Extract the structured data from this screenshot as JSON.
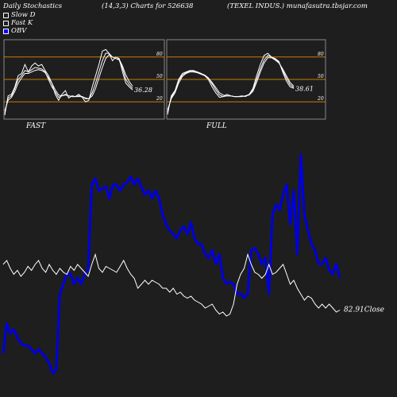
{
  "header": {
    "left": "Daily Stochastics",
    "center": "(14,3,3) Charts for 526638",
    "right": "(TEXEL INDUS.) munafasutra.tbsjar.com"
  },
  "legend": [
    {
      "label": "Slow  D",
      "color": "#1e1e1e"
    },
    {
      "label": "Fast K",
      "color": "#1e1e1e"
    },
    {
      "label": "OBV",
      "color": "#0000ff"
    }
  ],
  "colors": {
    "background": "#1e1e1e",
    "stoch_line": "#ffffff",
    "band_line": "#cc7a00",
    "obv_line": "#0000dd",
    "close_line": "#ffffff"
  },
  "chart_data": [
    {
      "type": "line",
      "title": "FAST",
      "ylim": [
        0,
        100
      ],
      "yticks": [
        20,
        50,
        80
      ],
      "bands": [
        20,
        50,
        80
      ],
      "last_label": "36.28",
      "series": [
        {
          "values": [
            2,
            28,
            30,
            40,
            55,
            58,
            70,
            60,
            68,
            72,
            68,
            70,
            62,
            55,
            45,
            30,
            22,
            30,
            35,
            25,
            28,
            27,
            30,
            26,
            20,
            22,
            40,
            55,
            70,
            88,
            90,
            85,
            75,
            80,
            78,
            60,
            45,
            40,
            36
          ]
        },
        {
          "values": [
            5,
            25,
            28,
            38,
            50,
            55,
            62,
            60,
            63,
            66,
            65,
            64,
            60,
            50,
            40,
            33,
            26,
            28,
            30,
            28,
            27,
            27,
            28,
            27,
            24,
            24,
            32,
            45,
            60,
            75,
            85,
            85,
            80,
            78,
            76,
            65,
            50,
            43,
            38
          ]
        },
        {
          "values": [
            8,
            22,
            26,
            34,
            45,
            52,
            58,
            58,
            60,
            62,
            63,
            62,
            59,
            52,
            45,
            36,
            29,
            28,
            29,
            28,
            27,
            27,
            27,
            27,
            25,
            24,
            28,
            38,
            52,
            66,
            78,
            83,
            80,
            78,
            77,
            68,
            56,
            47,
            41
          ]
        }
      ]
    },
    {
      "type": "line",
      "title": "FULL",
      "ylim": [
        0,
        100
      ],
      "yticks": [
        20,
        50,
        80
      ],
      "bands": [
        20,
        50,
        80
      ],
      "last_label": "38.61",
      "series": [
        {
          "values": [
            3,
            28,
            35,
            50,
            58,
            60,
            62,
            62,
            60,
            58,
            55,
            50,
            40,
            32,
            26,
            27,
            30,
            28,
            27,
            27,
            28,
            27,
            30,
            38,
            55,
            70,
            82,
            85,
            80,
            78,
            74,
            60,
            48,
            40,
            38
          ]
        },
        {
          "values": [
            6,
            26,
            34,
            48,
            56,
            59,
            61,
            61,
            60,
            58,
            56,
            52,
            44,
            36,
            29,
            27,
            28,
            28,
            27,
            27,
            27,
            28,
            30,
            36,
            50,
            64,
            76,
            82,
            80,
            77,
            73,
            62,
            52,
            43,
            39
          ]
        },
        {
          "values": [
            9,
            24,
            32,
            45,
            54,
            58,
            60,
            60,
            59,
            57,
            55,
            52,
            46,
            39,
            32,
            29,
            28,
            28,
            27,
            27,
            27,
            28,
            29,
            34,
            46,
            60,
            72,
            79,
            79,
            76,
            72,
            64,
            55,
            46,
            41
          ]
        }
      ]
    },
    {
      "type": "line",
      "close_label": "82.91Close",
      "series": [
        {
          "name": "OBV",
          "values": [
            10,
            25,
            20,
            22,
            18,
            15,
            14,
            14,
            12,
            10,
            12,
            10,
            8,
            5,
            0,
            2,
            40,
            45,
            50,
            50,
            45,
            48,
            45,
            50,
            52,
            95,
            98,
            92,
            93,
            94,
            88,
            95,
            95,
            92,
            95,
            96,
            99,
            95,
            98,
            94,
            90,
            92,
            88,
            92,
            88,
            80,
            75,
            72,
            70,
            68,
            72,
            74,
            70,
            76,
            68,
            65,
            65,
            60,
            58,
            62,
            55,
            60,
            48,
            45,
            46,
            45,
            40,
            40,
            38,
            40,
            62,
            63,
            60,
            55,
            58,
            40,
            80,
            85,
            82,
            90,
            95,
            75,
            92,
            60,
            110,
            80,
            72,
            65,
            62,
            55,
            55,
            58,
            52,
            50,
            55,
            48
          ]
        },
        {
          "name": "Close",
          "values": [
            50,
            52,
            48,
            45,
            47,
            44,
            46,
            49,
            47,
            50,
            52,
            48,
            46,
            50,
            47,
            45,
            48,
            46,
            45,
            49,
            47,
            50,
            48,
            46,
            44,
            50,
            55,
            48,
            46,
            49,
            48,
            47,
            46,
            49,
            52,
            48,
            45,
            43,
            38,
            40,
            42,
            40,
            42,
            41,
            40,
            38,
            38,
            36,
            38,
            35,
            36,
            34,
            33,
            34,
            32,
            31,
            30,
            28,
            29,
            30,
            27,
            25,
            26,
            24,
            25,
            30,
            40,
            45,
            48,
            55,
            50,
            46,
            45,
            43,
            45,
            50,
            45,
            46,
            48,
            50,
            45,
            40,
            42,
            38,
            35,
            32,
            34,
            33,
            30,
            28,
            30,
            28,
            30,
            28,
            26,
            27
          ]
        }
      ]
    }
  ]
}
